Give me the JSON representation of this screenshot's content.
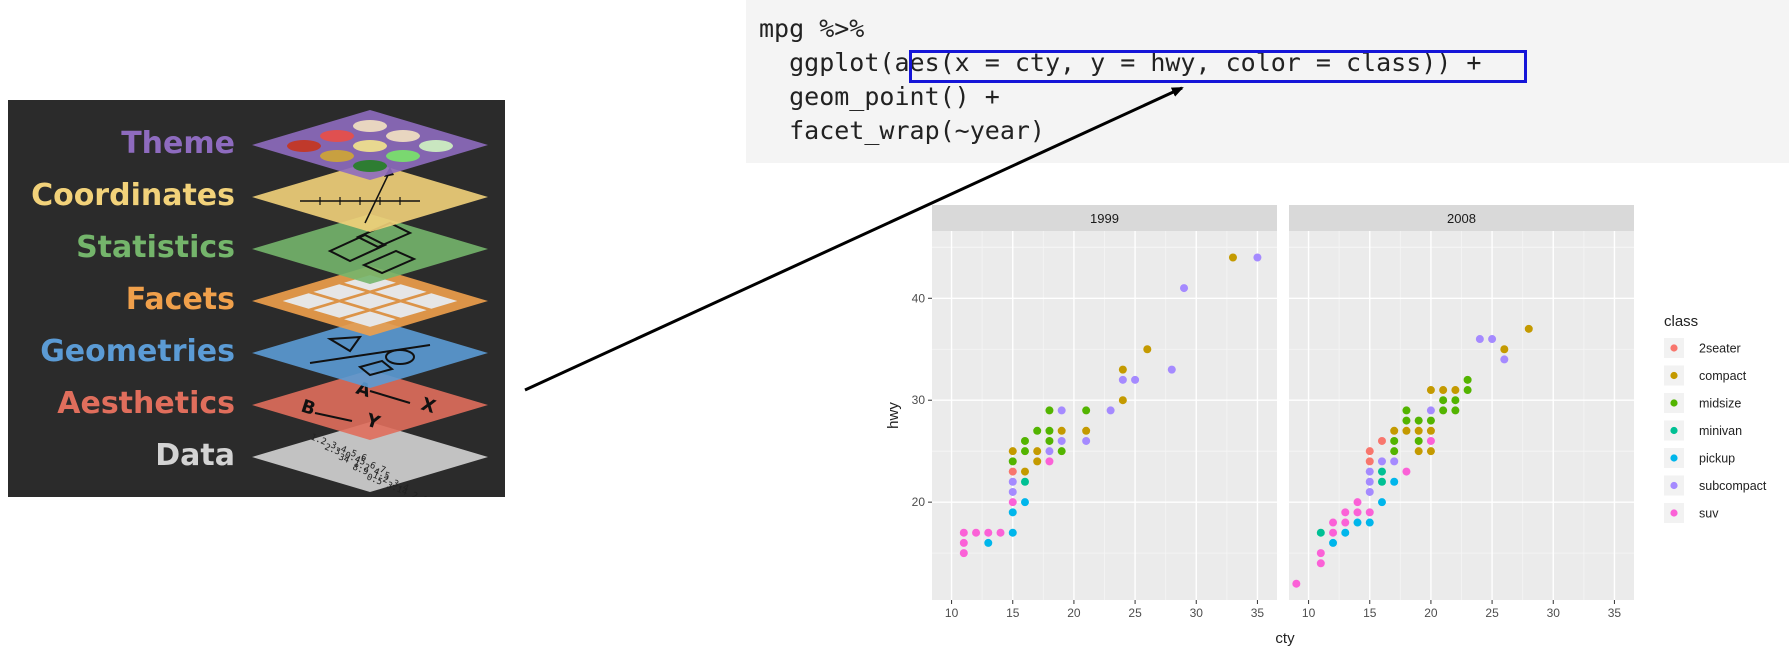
{
  "layers": [
    {
      "label": "Theme",
      "color": "#8e6bbf"
    },
    {
      "label": "Coordinates",
      "color": "#f2d27a"
    },
    {
      "label": "Statistics",
      "color": "#74b56b"
    },
    {
      "label": "Facets",
      "color": "#f0a04b"
    },
    {
      "label": "Geometries",
      "color": "#5b9bd5"
    },
    {
      "label": "Aesthetics",
      "color": "#e06e5c"
    },
    {
      "label": "Data",
      "color": "#d3d3d3"
    }
  ],
  "data_layer_numbers": [
    "1.2  3.4  5.6",
    "2.3  0.45  6.7",
    "34  1.2  4.5",
    "8.9  1.2  3.4",
    "0.5  3.14  2.1"
  ],
  "aesthetics_letters": [
    "A",
    "X",
    "B",
    "Y"
  ],
  "code": {
    "lines": [
      "mpg %>%",
      "  ggplot(aes(x = cty, y = hwy, color = class)) +",
      "  geom_point() +",
      "  facet_wrap(~year)"
    ],
    "highlight_color": "#1515d8"
  },
  "chart_data": {
    "type": "scatter",
    "facets": [
      "1999",
      "2008"
    ],
    "xlabel": "cty",
    "ylabel": "hwy",
    "xlim": [
      8.4,
      36.6
    ],
    "ylim": [
      10.4,
      46.6
    ],
    "xticks": [
      10,
      15,
      20,
      25,
      30,
      35
    ],
    "yticks": [
      20,
      30,
      40
    ],
    "legend": {
      "title": "class",
      "position": "right"
    },
    "classes": [
      {
        "name": "2seater",
        "color": "#f8766d"
      },
      {
        "name": "compact",
        "color": "#c49a00"
      },
      {
        "name": "midsize",
        "color": "#53b400"
      },
      {
        "name": "minivan",
        "color": "#00c094"
      },
      {
        "name": "pickup",
        "color": "#00b6eb"
      },
      {
        "name": "subcompact",
        "color": "#a58aff"
      },
      {
        "name": "suv",
        "color": "#fb61d7"
      }
    ],
    "points": {
      "1999": [
        [
          11,
          15,
          "suv"
        ],
        [
          11,
          16,
          "suv"
        ],
        [
          11,
          17,
          "suv"
        ],
        [
          12,
          17,
          "suv"
        ],
        [
          13,
          16,
          "pickup"
        ],
        [
          13,
          17,
          "suv"
        ],
        [
          14,
          17,
          "suv"
        ],
        [
          15,
          17,
          "pickup"
        ],
        [
          15,
          19,
          "pickup"
        ],
        [
          15,
          20,
          "suv"
        ],
        [
          15,
          21,
          "subcompact"
        ],
        [
          15,
          22,
          "subcompact"
        ],
        [
          15,
          23,
          "2seater"
        ],
        [
          15,
          24,
          "midsize"
        ],
        [
          15,
          25,
          "compact"
        ],
        [
          16,
          20,
          "pickup"
        ],
        [
          16,
          22,
          "minivan"
        ],
        [
          16,
          23,
          "compact"
        ],
        [
          16,
          25,
          "midsize"
        ],
        [
          16,
          26,
          "midsize"
        ],
        [
          17,
          24,
          "compact"
        ],
        [
          17,
          25,
          "compact"
        ],
        [
          17,
          27,
          "midsize"
        ],
        [
          18,
          24,
          "suv"
        ],
        [
          18,
          25,
          "subcompact"
        ],
        [
          18,
          26,
          "midsize"
        ],
        [
          18,
          27,
          "midsize"
        ],
        [
          18,
          29,
          "midsize"
        ],
        [
          19,
          25,
          "midsize"
        ],
        [
          19,
          26,
          "subcompact"
        ],
        [
          19,
          27,
          "compact"
        ],
        [
          19,
          29,
          "subcompact"
        ],
        [
          21,
          26,
          "subcompact"
        ],
        [
          21,
          27,
          "compact"
        ],
        [
          21,
          29,
          "midsize"
        ],
        [
          23,
          29,
          "subcompact"
        ],
        [
          24,
          30,
          "compact"
        ],
        [
          24,
          32,
          "subcompact"
        ],
        [
          24,
          33,
          "compact"
        ],
        [
          25,
          32,
          "subcompact"
        ],
        [
          26,
          35,
          "compact"
        ],
        [
          28,
          33,
          "subcompact"
        ],
        [
          29,
          41,
          "subcompact"
        ],
        [
          33,
          44,
          "compact"
        ],
        [
          35,
          44,
          "subcompact"
        ]
      ],
      "2008": [
        [
          9,
          12,
          "suv"
        ],
        [
          11,
          14,
          "suv"
        ],
        [
          11,
          15,
          "suv"
        ],
        [
          11,
          17,
          "minivan"
        ],
        [
          12,
          16,
          "pickup"
        ],
        [
          12,
          17,
          "suv"
        ],
        [
          12,
          18,
          "suv"
        ],
        [
          13,
          17,
          "pickup"
        ],
        [
          13,
          18,
          "suv"
        ],
        [
          13,
          19,
          "suv"
        ],
        [
          14,
          18,
          "pickup"
        ],
        [
          14,
          19,
          "suv"
        ],
        [
          14,
          20,
          "suv"
        ],
        [
          15,
          18,
          "pickup"
        ],
        [
          15,
          19,
          "suv"
        ],
        [
          15,
          21,
          "subcompact"
        ],
        [
          15,
          22,
          "subcompact"
        ],
        [
          15,
          23,
          "subcompact"
        ],
        [
          15,
          24,
          "2seater"
        ],
        [
          15,
          25,
          "2seater"
        ],
        [
          16,
          20,
          "pickup"
        ],
        [
          16,
          22,
          "minivan"
        ],
        [
          16,
          23,
          "minivan"
        ],
        [
          16,
          24,
          "subcompact"
        ],
        [
          16,
          26,
          "2seater"
        ],
        [
          17,
          22,
          "pickup"
        ],
        [
          17,
          24,
          "subcompact"
        ],
        [
          17,
          25,
          "midsize"
        ],
        [
          17,
          26,
          "midsize"
        ],
        [
          17,
          27,
          "compact"
        ],
        [
          18,
          23,
          "suv"
        ],
        [
          18,
          27,
          "compact"
        ],
        [
          18,
          28,
          "midsize"
        ],
        [
          18,
          29,
          "midsize"
        ],
        [
          19,
          25,
          "compact"
        ],
        [
          19,
          26,
          "midsize"
        ],
        [
          19,
          27,
          "compact"
        ],
        [
          19,
          28,
          "midsize"
        ],
        [
          20,
          25,
          "compact"
        ],
        [
          20,
          26,
          "suv"
        ],
        [
          20,
          27,
          "compact"
        ],
        [
          20,
          28,
          "midsize"
        ],
        [
          20,
          29,
          "subcompact"
        ],
        [
          20,
          31,
          "compact"
        ],
        [
          21,
          29,
          "midsize"
        ],
        [
          21,
          30,
          "midsize"
        ],
        [
          21,
          31,
          "compact"
        ],
        [
          22,
          29,
          "midsize"
        ],
        [
          22,
          30,
          "midsize"
        ],
        [
          22,
          31,
          "compact"
        ],
        [
          23,
          31,
          "midsize"
        ],
        [
          23,
          32,
          "midsize"
        ],
        [
          24,
          36,
          "subcompact"
        ],
        [
          25,
          36,
          "subcompact"
        ],
        [
          26,
          34,
          "subcompact"
        ],
        [
          26,
          35,
          "compact"
        ],
        [
          28,
          37,
          "compact"
        ]
      ]
    }
  }
}
